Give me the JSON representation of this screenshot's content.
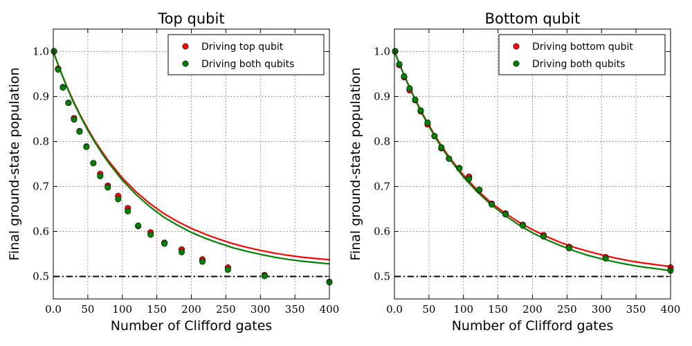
{
  "chart_data": [
    {
      "type": "line",
      "title": "Top qubit",
      "xlabel": "Number of Clifford gates",
      "ylabel": "Final ground-state population",
      "xlim": [
        0,
        400
      ],
      "ylim": [
        0.45,
        1.05
      ],
      "xticks": [
        0,
        50,
        100,
        150,
        200,
        250,
        300,
        350,
        400
      ],
      "yticks": [
        0.5,
        0.6,
        0.7,
        0.8,
        0.9,
        1.0
      ],
      "grid": true,
      "legend_position": "top-right",
      "reference_line": {
        "y": 0.5,
        "style": "dash-dot",
        "color": "#000000"
      },
      "series": [
        {
          "name": "Driving top qubit",
          "color": "#ff0000",
          "points": [
            [
              1,
              1.0
            ],
            [
              7,
              0.962
            ],
            [
              14,
              0.921
            ],
            [
              22,
              0.886
            ],
            [
              30,
              0.852
            ],
            [
              38,
              0.823
            ],
            [
              48,
              0.789
            ],
            [
              58,
              0.752
            ],
            [
              68,
              0.728
            ],
            [
              79,
              0.702
            ],
            [
              94,
              0.679
            ],
            [
              108,
              0.652
            ],
            [
              123,
              0.612
            ],
            [
              141,
              0.598
            ],
            [
              161,
              0.575
            ],
            [
              186,
              0.56
            ],
            [
              216,
              0.538
            ],
            [
              253,
              0.52
            ],
            [
              306,
              0.503
            ],
            [
              400,
              0.488
            ]
          ],
          "fit": [
            [
              0,
              1.0
            ],
            [
              10,
              0.958
            ],
            [
              20,
              0.921
            ],
            [
              30,
              0.887
            ],
            [
              40,
              0.856
            ],
            [
              50,
              0.828
            ],
            [
              60,
              0.802
            ],
            [
              70,
              0.779
            ],
            [
              80,
              0.757
            ],
            [
              100,
              0.719
            ],
            [
              120,
              0.688
            ],
            [
              140,
              0.662
            ],
            [
              160,
              0.64
            ],
            [
              180,
              0.622
            ],
            [
              200,
              0.607
            ],
            [
              220,
              0.594
            ],
            [
              240,
              0.583
            ],
            [
              260,
              0.573
            ],
            [
              280,
              0.565
            ],
            [
              300,
              0.558
            ],
            [
              320,
              0.552
            ],
            [
              340,
              0.547
            ],
            [
              360,
              0.543
            ],
            [
              380,
              0.54
            ],
            [
              400,
              0.537
            ]
          ]
        },
        {
          "name": "Driving both qubits",
          "color": "#008000",
          "points": [
            [
              1,
              1.001
            ],
            [
              7,
              0.96
            ],
            [
              14,
              0.92
            ],
            [
              22,
              0.886
            ],
            [
              30,
              0.849
            ],
            [
              38,
              0.822
            ],
            [
              48,
              0.788
            ],
            [
              58,
              0.752
            ],
            [
              68,
              0.723
            ],
            [
              79,
              0.698
            ],
            [
              94,
              0.672
            ],
            [
              108,
              0.645
            ],
            [
              123,
              0.613
            ],
            [
              141,
              0.593
            ],
            [
              161,
              0.573
            ],
            [
              186,
              0.554
            ],
            [
              216,
              0.533
            ],
            [
              253,
              0.515
            ],
            [
              306,
              0.501
            ],
            [
              400,
              0.487
            ]
          ],
          "fit": [
            [
              0,
              1.0
            ],
            [
              10,
              0.958
            ],
            [
              20,
              0.92
            ],
            [
              30,
              0.885
            ],
            [
              40,
              0.854
            ],
            [
              50,
              0.825
            ],
            [
              60,
              0.799
            ],
            [
              70,
              0.775
            ],
            [
              80,
              0.753
            ],
            [
              100,
              0.714
            ],
            [
              120,
              0.682
            ],
            [
              140,
              0.655
            ],
            [
              160,
              0.632
            ],
            [
              180,
              0.614
            ],
            [
              200,
              0.598
            ],
            [
              220,
              0.585
            ],
            [
              240,
              0.574
            ],
            [
              260,
              0.564
            ],
            [
              280,
              0.556
            ],
            [
              300,
              0.549
            ],
            [
              320,
              0.543
            ],
            [
              340,
              0.538
            ],
            [
              360,
              0.534
            ],
            [
              380,
              0.531
            ],
            [
              400,
              0.528
            ]
          ]
        }
      ]
    },
    {
      "type": "line",
      "title": "Bottom qubit",
      "xlabel": "Number of Clifford gates",
      "ylabel": "Final ground-state population",
      "xlim": [
        0,
        400
      ],
      "ylim": [
        0.45,
        1.05
      ],
      "xticks": [
        0,
        50,
        100,
        150,
        200,
        250,
        300,
        350,
        400
      ],
      "yticks": [
        0.5,
        0.6,
        0.7,
        0.8,
        0.9,
        1.0
      ],
      "grid": true,
      "legend_position": "top-right",
      "reference_line": {
        "y": 0.5,
        "style": "dash-dot",
        "color": "#000000"
      },
      "series": [
        {
          "name": "Driving bottom qubit",
          "color": "#ff0000",
          "points": [
            [
              1,
              1.0
            ],
            [
              7,
              0.97
            ],
            [
              14,
              0.943
            ],
            [
              22,
              0.914
            ],
            [
              30,
              0.892
            ],
            [
              38,
              0.867
            ],
            [
              48,
              0.838
            ],
            [
              58,
              0.812
            ],
            [
              68,
              0.785
            ],
            [
              79,
              0.762
            ],
            [
              94,
              0.741
            ],
            [
              108,
              0.722
            ],
            [
              123,
              0.692
            ],
            [
              141,
              0.662
            ],
            [
              161,
              0.64
            ],
            [
              186,
              0.615
            ],
            [
              216,
              0.592
            ],
            [
              253,
              0.566
            ],
            [
              306,
              0.543
            ],
            [
              400,
              0.52
            ]
          ],
          "fit": [
            [
              0,
              1.0
            ],
            [
              10,
              0.962
            ],
            [
              20,
              0.927
            ],
            [
              30,
              0.894
            ],
            [
              40,
              0.864
            ],
            [
              50,
              0.836
            ],
            [
              60,
              0.81
            ],
            [
              70,
              0.786
            ],
            [
              80,
              0.764
            ],
            [
              100,
              0.725
            ],
            [
              120,
              0.692
            ],
            [
              140,
              0.664
            ],
            [
              160,
              0.641
            ],
            [
              180,
              0.621
            ],
            [
              200,
              0.604
            ],
            [
              220,
              0.589
            ],
            [
              240,
              0.576
            ],
            [
              260,
              0.565
            ],
            [
              280,
              0.556
            ],
            [
              300,
              0.548
            ],
            [
              320,
              0.541
            ],
            [
              340,
              0.535
            ],
            [
              360,
              0.53
            ],
            [
              380,
              0.526
            ],
            [
              400,
              0.522
            ]
          ]
        },
        {
          "name": "Driving both qubits",
          "color": "#008000",
          "points": [
            [
              1,
              1.001
            ],
            [
              7,
              0.972
            ],
            [
              14,
              0.945
            ],
            [
              22,
              0.918
            ],
            [
              30,
              0.893
            ],
            [
              38,
              0.869
            ],
            [
              48,
              0.842
            ],
            [
              58,
              0.812
            ],
            [
              68,
              0.787
            ],
            [
              79,
              0.762
            ],
            [
              94,
              0.74
            ],
            [
              108,
              0.717
            ],
            [
              123,
              0.693
            ],
            [
              141,
              0.66
            ],
            [
              161,
              0.638
            ],
            [
              186,
              0.613
            ],
            [
              216,
              0.589
            ],
            [
              253,
              0.563
            ],
            [
              306,
              0.54
            ],
            [
              400,
              0.513
            ]
          ],
          "fit": [
            [
              0,
              1.0
            ],
            [
              10,
              0.962
            ],
            [
              20,
              0.926
            ],
            [
              30,
              0.893
            ],
            [
              40,
              0.862
            ],
            [
              50,
              0.834
            ],
            [
              60,
              0.807
            ],
            [
              70,
              0.783
            ],
            [
              80,
              0.761
            ],
            [
              100,
              0.721
            ],
            [
              120,
              0.688
            ],
            [
              140,
              0.66
            ],
            [
              160,
              0.636
            ],
            [
              180,
              0.615
            ],
            [
              200,
              0.597
            ],
            [
              220,
              0.582
            ],
            [
              240,
              0.569
            ],
            [
              260,
              0.557
            ],
            [
              280,
              0.547
            ],
            [
              300,
              0.539
            ],
            [
              320,
              0.532
            ],
            [
              340,
              0.526
            ],
            [
              360,
              0.521
            ],
            [
              380,
              0.517
            ],
            [
              400,
              0.513
            ]
          ]
        }
      ]
    }
  ]
}
